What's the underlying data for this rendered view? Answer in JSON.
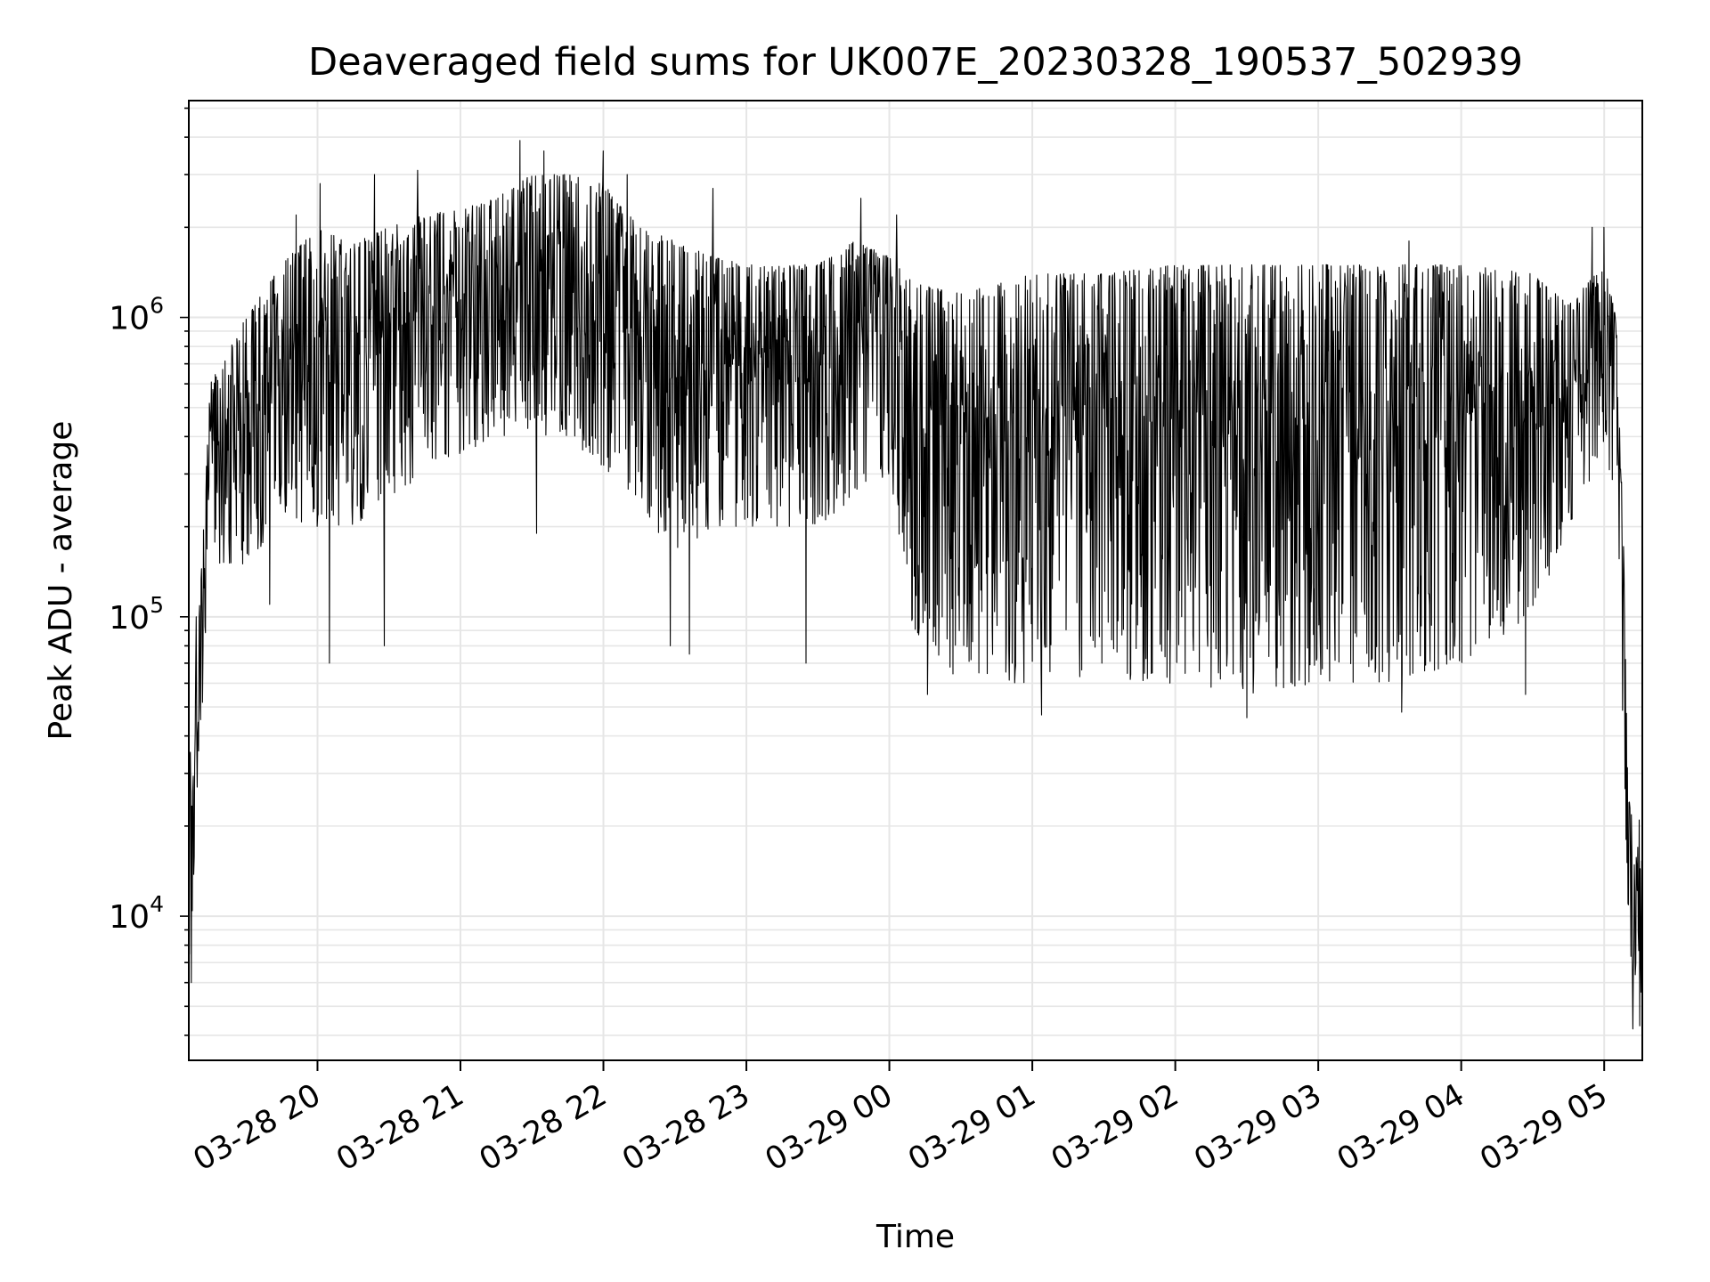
{
  "chart_data": {
    "type": "line",
    "title": "Deaveraged field sums for UK007E_20230328_190537_502939",
    "xlabel": "Time",
    "ylabel": "Peak ADU - average",
    "xlim": [
      "2023-03-28T19:06",
      "2023-03-29T05:16"
    ],
    "ylim": [
      3300,
      5300000
    ],
    "yscale": "log",
    "grid": true,
    "legend": "none",
    "line_color": "#000000",
    "grid_color": "#e6e6e6",
    "x_ticks": [
      {
        "t": "2023-03-28T20:00",
        "label": "03-28 20"
      },
      {
        "t": "2023-03-28T21:00",
        "label": "03-28 21"
      },
      {
        "t": "2023-03-28T22:00",
        "label": "03-28 22"
      },
      {
        "t": "2023-03-28T23:00",
        "label": "03-28 23"
      },
      {
        "t": "2023-03-29T00:00",
        "label": "03-29 00"
      },
      {
        "t": "2023-03-29T01:00",
        "label": "03-29 01"
      },
      {
        "t": "2023-03-29T02:00",
        "label": "03-29 02"
      },
      {
        "t": "2023-03-29T03:00",
        "label": "03-29 03"
      },
      {
        "t": "2023-03-29T04:00",
        "label": "03-29 04"
      },
      {
        "t": "2023-03-29T05:00",
        "label": "03-29 05"
      }
    ],
    "y_ticks": [
      {
        "value": 10000,
        "base": "10",
        "exp": "4"
      },
      {
        "value": 100000,
        "base": "10",
        "exp": "5"
      },
      {
        "value": 1000000,
        "base": "10",
        "exp": "6"
      }
    ],
    "envelope": [
      {
        "t": "2023-03-28T19:06",
        "low": 6000,
        "high": 30000
      },
      {
        "t": "2023-03-28T19:10",
        "low": 25000,
        "high": 90000
      },
      {
        "t": "2023-03-28T19:15",
        "low": 150000,
        "high": 600000
      },
      {
        "t": "2023-03-28T19:30",
        "low": 150000,
        "high": 1000000
      },
      {
        "t": "2023-03-28T19:45",
        "low": 200000,
        "high": 1500000
      },
      {
        "t": "2023-03-28T20:00",
        "low": 200000,
        "high": 2000000
      },
      {
        "t": "2023-03-28T20:15",
        "low": 200000,
        "high": 1800000
      },
      {
        "t": "2023-03-28T20:30",
        "low": 250000,
        "high": 2000000
      },
      {
        "t": "2023-03-28T20:45",
        "low": 300000,
        "high": 2200000
      },
      {
        "t": "2023-03-28T21:00",
        "low": 350000,
        "high": 2300000
      },
      {
        "t": "2023-03-28T21:15",
        "low": 400000,
        "high": 2500000
      },
      {
        "t": "2023-03-28T21:30",
        "low": 400000,
        "high": 3000000
      },
      {
        "t": "2023-03-28T21:45",
        "low": 400000,
        "high": 3000000
      },
      {
        "t": "2023-03-28T22:00",
        "low": 300000,
        "high": 2800000
      },
      {
        "t": "2023-03-28T22:15",
        "low": 250000,
        "high": 2000000
      },
      {
        "t": "2023-03-28T22:30",
        "low": 150000,
        "high": 1800000
      },
      {
        "t": "2023-03-28T22:45",
        "low": 200000,
        "high": 1600000
      },
      {
        "t": "2023-03-28T23:00",
        "low": 200000,
        "high": 1500000
      },
      {
        "t": "2023-03-28T23:15",
        "low": 200000,
        "high": 1500000
      },
      {
        "t": "2023-03-28T23:30",
        "low": 200000,
        "high": 1500000
      },
      {
        "t": "2023-03-28T23:45",
        "low": 250000,
        "high": 1800000
      },
      {
        "t": "2023-03-29T00:00",
        "low": 300000,
        "high": 1600000
      },
      {
        "t": "2023-03-29T00:10",
        "low": 90000,
        "high": 1300000
      },
      {
        "t": "2023-03-29T00:30",
        "low": 60000,
        "high": 1200000
      },
      {
        "t": "2023-03-29T01:00",
        "low": 60000,
        "high": 1400000
      },
      {
        "t": "2023-03-29T01:30",
        "low": 60000,
        "high": 1400000
      },
      {
        "t": "2023-03-29T02:00",
        "low": 60000,
        "high": 1500000
      },
      {
        "t": "2023-03-29T02:30",
        "low": 55000,
        "high": 1500000
      },
      {
        "t": "2023-03-29T03:00",
        "low": 60000,
        "high": 1500000
      },
      {
        "t": "2023-03-29T03:30",
        "low": 60000,
        "high": 1500000
      },
      {
        "t": "2023-03-29T04:00",
        "low": 70000,
        "high": 1500000
      },
      {
        "t": "2023-03-29T04:30",
        "low": 100000,
        "high": 1400000
      },
      {
        "t": "2023-03-29T04:45",
        "low": 200000,
        "high": 1100000
      },
      {
        "t": "2023-03-29T05:00",
        "low": 350000,
        "high": 1500000
      },
      {
        "t": "2023-03-29T05:05",
        "low": 250000,
        "high": 1000000
      },
      {
        "t": "2023-03-29T05:08",
        "low": 40000,
        "high": 200000
      },
      {
        "t": "2023-03-29T05:10",
        "low": 8000,
        "high": 25000
      },
      {
        "t": "2023-03-29T05:16",
        "low": 4500,
        "high": 20000
      }
    ],
    "spikes": [
      {
        "t": "2023-03-28T19:07",
        "value": 6000
      },
      {
        "t": "2023-03-28T19:09",
        "value": 100000
      },
      {
        "t": "2023-03-28T19:40",
        "value": 110000
      },
      {
        "t": "2023-03-28T19:51",
        "value": 2200000
      },
      {
        "t": "2023-03-28T20:01",
        "value": 2800000
      },
      {
        "t": "2023-03-28T20:05",
        "value": 70000
      },
      {
        "t": "2023-03-28T20:24",
        "value": 3000000
      },
      {
        "t": "2023-03-28T20:28",
        "value": 80000
      },
      {
        "t": "2023-03-28T20:42",
        "value": 3100000
      },
      {
        "t": "2023-03-28T21:25",
        "value": 3900000
      },
      {
        "t": "2023-03-28T21:32",
        "value": 190000
      },
      {
        "t": "2023-03-28T21:35",
        "value": 3600000
      },
      {
        "t": "2023-03-28T22:00",
        "value": 3600000
      },
      {
        "t": "2023-03-28T22:10",
        "value": 3000000
      },
      {
        "t": "2023-03-28T22:28",
        "value": 80000
      },
      {
        "t": "2023-03-28T22:36",
        "value": 75000
      },
      {
        "t": "2023-03-28T22:46",
        "value": 2700000
      },
      {
        "t": "2023-03-28T23:25",
        "value": 70000
      },
      {
        "t": "2023-03-28T23:48",
        "value": 2500000
      },
      {
        "t": "2023-03-29T00:03",
        "value": 2200000
      },
      {
        "t": "2023-03-29T00:16",
        "value": 55000
      },
      {
        "t": "2023-03-29T01:04",
        "value": 47000
      },
      {
        "t": "2023-03-29T02:30",
        "value": 46000
      },
      {
        "t": "2023-03-29T03:35",
        "value": 48000
      },
      {
        "t": "2023-03-29T03:38",
        "value": 1800000
      },
      {
        "t": "2023-03-29T04:27",
        "value": 55000
      },
      {
        "t": "2023-03-29T04:55",
        "value": 2000000
      },
      {
        "t": "2023-03-29T05:00",
        "value": 2000000
      },
      {
        "t": "2023-03-29T05:12",
        "value": 4200
      },
      {
        "t": "2023-03-29T05:15",
        "value": 4300
      }
    ]
  }
}
